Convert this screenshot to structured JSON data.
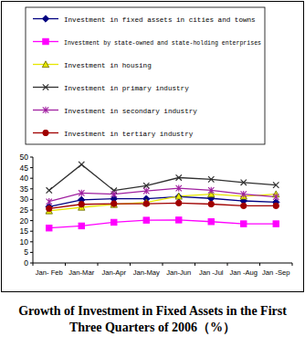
{
  "chart_data": {
    "type": "line",
    "title": "Growth of Investment in Fixed Assets in the First Three Quarters of 2006（%）",
    "categories": [
      "Jan- Feb",
      "Jan-Mar",
      "Jan-Apr",
      "Jan-May",
      "Jan-Jun",
      "Jan -Jul",
      "Jan -Aug",
      "Jan -Sep"
    ],
    "series": [
      {
        "name": "Investment in fixed assets in cities and towns",
        "color": "#000080",
        "marker": "diamond",
        "values": [
          26.6,
          29.8,
          30.3,
          30.3,
          31.3,
          30.5,
          29.3,
          28.7
        ]
      },
      {
        "name": "Investment by state-owned and state-holding enterprises",
        "color": "#ff00ff",
        "marker": "square",
        "values": [
          16.5,
          17.5,
          19.2,
          20.2,
          20.3,
          19.5,
          18.5,
          18.5
        ]
      },
      {
        "name": "Investment in housing",
        "color": "#e6e600",
        "marker": "triangle",
        "values": [
          24.6,
          26.3,
          27.6,
          28.6,
          31.5,
          32.5,
          31.5,
          32.5
        ]
      },
      {
        "name": "Investment in primary industry",
        "color": "#303030",
        "marker": "x",
        "values": [
          34.3,
          46.5,
          34.2,
          36.5,
          40.3,
          39.5,
          38.0,
          36.8
        ]
      },
      {
        "name": "Investment in secondary industry",
        "color": "#a020a0",
        "marker": "star",
        "values": [
          29.0,
          33.0,
          32.5,
          34.0,
          35.3,
          34.3,
          32.5,
          31.2
        ]
      },
      {
        "name": "Investment in tertiary industry",
        "color": "#a00000",
        "marker": "circle",
        "values": [
          25.7,
          27.7,
          28.0,
          28.0,
          28.3,
          27.8,
          27.0,
          27.0
        ]
      }
    ],
    "ylim": [
      0,
      50
    ],
    "yticks": [
      0,
      5,
      10,
      15,
      20,
      25,
      30,
      35,
      40,
      45,
      50
    ],
    "grid": false,
    "legend": "top"
  }
}
